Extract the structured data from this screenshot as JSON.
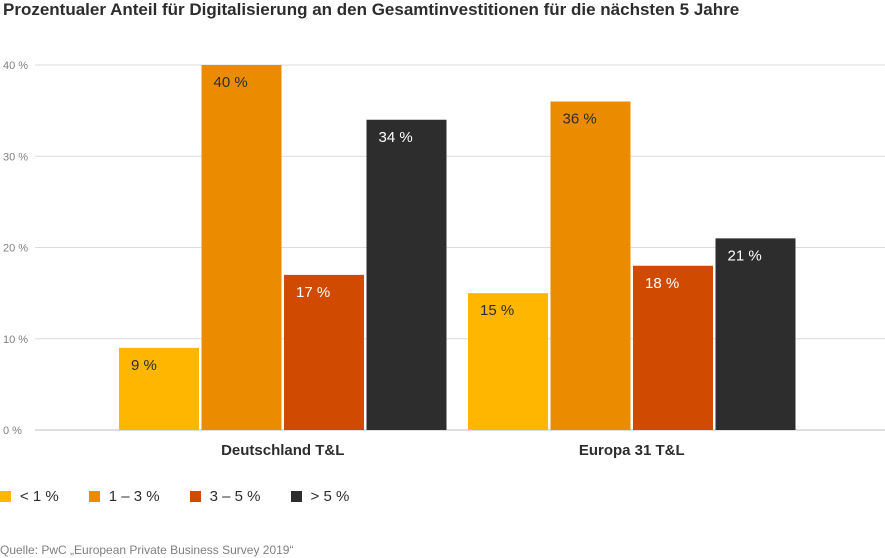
{
  "chart_data": {
    "type": "bar",
    "title": "Prozentualer Anteil für Digitalisierung an den Gesamtinvestitionen für die nächsten 5 Jahre",
    "categories": [
      "Deutschland T&L",
      "Europa 31 T&L"
    ],
    "series": [
      {
        "name": "< 1 %",
        "color": "#ffb600",
        "label_color": "#2d2d2d",
        "values": [
          9,
          15
        ],
        "labels": [
          "9 %",
          "15 %"
        ]
      },
      {
        "name": "1 – 3 %",
        "color": "#eb8c00",
        "label_color": "#2d2d2d",
        "values": [
          40,
          36
        ],
        "labels": [
          "40 %",
          "36 %"
        ]
      },
      {
        "name": "3 – 5 %",
        "color": "#d04a02",
        "label_color": "#ffffff",
        "values": [
          17,
          18
        ],
        "labels": [
          "17 %",
          "18 %"
        ]
      },
      {
        "name": "> 5 %",
        "color": "#2d2d2d",
        "label_color": "#ffffff",
        "values": [
          34,
          21
        ],
        "labels": [
          "34 %",
          "21 %"
        ]
      }
    ],
    "yticks": [
      0,
      10,
      20,
      30,
      40
    ],
    "ytick_labels": [
      "0 %",
      "10 %",
      "20 %",
      "30 %",
      "40 %"
    ],
    "ylim": [
      0,
      40
    ],
    "xlabel": "",
    "ylabel": "",
    "grid": true,
    "legend_position": "bottom-left"
  },
  "source": "Quelle: PwC „European Private Business Survey 2019“"
}
